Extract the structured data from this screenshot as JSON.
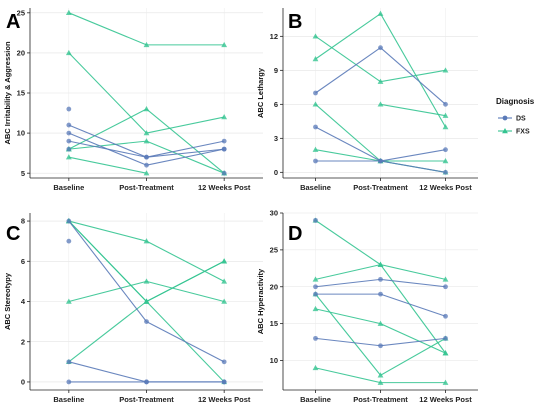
{
  "legend": {
    "title": "Diagnosis",
    "entries": [
      {
        "label": "DS",
        "color": "#5a7ab8"
      },
      {
        "label": "FXS",
        "color": "#34c491"
      }
    ]
  },
  "chart_data": [
    {
      "type": "line",
      "panel": "A",
      "ylabel": "ABC Irritability & Aggression",
      "categories": [
        "Baseline",
        "Post-Treatment",
        "12 Weeks Post"
      ],
      "ylim": [
        4.4,
        25.6
      ],
      "yticks": [
        5,
        10,
        15,
        20,
        25
      ],
      "series": [
        {
          "group": "FXS",
          "values": [
            25,
            21,
            21
          ]
        },
        {
          "group": "FXS",
          "values": [
            20,
            10,
            12
          ]
        },
        {
          "group": "FXS",
          "values": [
            8,
            13,
            5
          ]
        },
        {
          "group": "FXS",
          "values": [
            8,
            9,
            5
          ]
        },
        {
          "group": "FXS",
          "values": [
            7,
            5,
            null
          ]
        },
        {
          "group": "DS",
          "values": [
            13,
            null,
            null
          ]
        },
        {
          "group": "DS",
          "values": [
            11,
            7,
            8
          ]
        },
        {
          "group": "DS",
          "values": [
            10,
            6,
            8
          ]
        },
        {
          "group": "DS",
          "values": [
            9,
            7,
            9
          ]
        },
        {
          "group": "DS",
          "values": [
            8,
            null,
            5
          ]
        }
      ]
    },
    {
      "type": "line",
      "panel": "B",
      "ylabel": "ABC Lethargy",
      "categories": [
        "Baseline",
        "Post-Treatment",
        "12 Weeks Post"
      ],
      "ylim": [
        -0.5,
        14.5
      ],
      "yticks": [
        0,
        3,
        6,
        9,
        12
      ],
      "series": [
        {
          "group": "FXS",
          "values": [
            10,
            14,
            4
          ]
        },
        {
          "group": "FXS",
          "values": [
            12,
            8,
            9
          ]
        },
        {
          "group": "FXS",
          "values": [
            6,
            1,
            0
          ]
        },
        {
          "group": "FXS",
          "values": [
            2,
            1,
            1
          ]
        },
        {
          "group": "FXS",
          "values": [
            null,
            6,
            5
          ]
        },
        {
          "group": "DS",
          "values": [
            7,
            11,
            6
          ]
        },
        {
          "group": "DS",
          "values": [
            4,
            1,
            2
          ]
        },
        {
          "group": "DS",
          "values": [
            1,
            1,
            0
          ]
        }
      ]
    },
    {
      "type": "line",
      "panel": "C",
      "ylabel": "ABC Stereotypy",
      "categories": [
        "Baseline",
        "Post-Treatment",
        "12 Weeks Post"
      ],
      "ylim": [
        -0.4,
        8.4
      ],
      "yticks": [
        0,
        2,
        4,
        6,
        8
      ],
      "series": [
        {
          "group": "FXS",
          "values": [
            8,
            7,
            5
          ]
        },
        {
          "group": "FXS",
          "values": [
            8,
            4,
            6
          ]
        },
        {
          "group": "FXS",
          "values": [
            8,
            4,
            0
          ]
        },
        {
          "group": "FXS",
          "values": [
            4,
            5,
            4
          ]
        },
        {
          "group": "FXS",
          "values": [
            1,
            4,
            6
          ]
        },
        {
          "group": "DS",
          "values": [
            8,
            3,
            1
          ]
        },
        {
          "group": "DS",
          "values": [
            7,
            null,
            null
          ]
        },
        {
          "group": "DS",
          "values": [
            1,
            0,
            0
          ]
        },
        {
          "group": "DS",
          "values": [
            0,
            0,
            0
          ]
        }
      ]
    },
    {
      "type": "line",
      "panel": "D",
      "ylabel": "ABC Hyperactivity",
      "categories": [
        "Baseline",
        "Post-Treatment",
        "12 Weeks Post"
      ],
      "ylim": [
        6.0,
        30.0
      ],
      "yticks": [
        10,
        15,
        20,
        25,
        30
      ],
      "series": [
        {
          "group": "FXS",
          "values": [
            29,
            23,
            11
          ]
        },
        {
          "group": "FXS",
          "values": [
            21,
            23,
            21
          ]
        },
        {
          "group": "FXS",
          "values": [
            19,
            8,
            13
          ]
        },
        {
          "group": "FXS",
          "values": [
            17,
            15,
            11
          ]
        },
        {
          "group": "FXS",
          "values": [
            9,
            7,
            7
          ]
        },
        {
          "group": "DS",
          "values": [
            29,
            null,
            null
          ]
        },
        {
          "group": "DS",
          "values": [
            20,
            21,
            20
          ]
        },
        {
          "group": "DS",
          "values": [
            19,
            19,
            16
          ]
        },
        {
          "group": "DS",
          "values": [
            13,
            12,
            13
          ]
        }
      ]
    }
  ]
}
